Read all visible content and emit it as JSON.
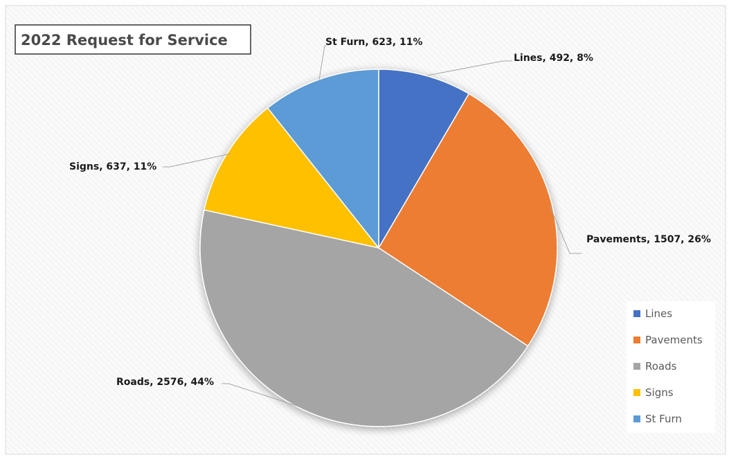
{
  "chart_data": {
    "type": "pie",
    "title": "2022 Request for Service",
    "categories": [
      "Lines",
      "Pavements",
      "Roads",
      "Signs",
      "St Furn"
    ],
    "values": [
      492,
      1507,
      2576,
      637,
      623
    ],
    "percent_labels": [
      "8%",
      "26%",
      "44%",
      "11%",
      "11%"
    ],
    "data_labels": [
      "Lines, 492, 8%",
      "Pavements, 1507, 26%",
      "Roads, 2576, 44%",
      "Signs, 637, 11%",
      "St Furn, 623, 11%"
    ],
    "legend_position": "bottom-right",
    "legend_entries": [
      "Lines",
      "Pavements",
      "Roads",
      "Signs",
      "St Furn"
    ],
    "start_angle_deg": 0,
    "direction": "clockwise",
    "colors": [
      "#4472c4",
      "#ed7d31",
      "#a5a5a5",
      "#ffc000",
      "#5b9bd5"
    ]
  }
}
